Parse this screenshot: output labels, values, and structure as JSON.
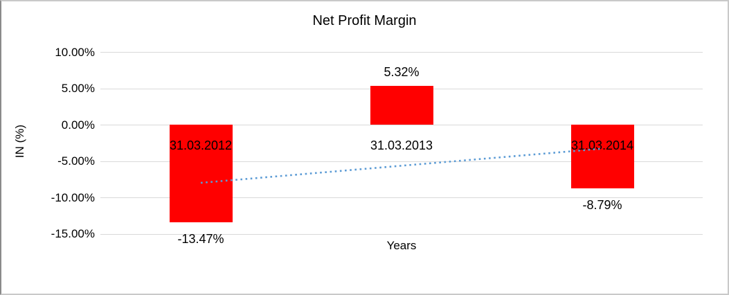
{
  "chart_data": {
    "type": "bar",
    "title": "Net Profit Margin",
    "xlabel": "Years",
    "ylabel": "IN (%)",
    "categories": [
      "31.03.2012",
      "31.03.2013",
      "31.03.2014"
    ],
    "values": [
      -13.47,
      5.32,
      -8.79
    ],
    "value_labels": [
      "-13.47%",
      "5.32%",
      "-8.79%"
    ],
    "bar_color": "#ff0000",
    "ylim": [
      -15,
      10
    ],
    "yticks": [
      10,
      5,
      0,
      -5,
      -10,
      -15
    ],
    "ytick_labels": [
      "10.00%",
      "5.00%",
      "0.00%",
      "-5.00%",
      "-10.00%",
      "-15.00%"
    ],
    "grid": true,
    "gridline_color": "#d9d9d9",
    "background_color": "#ffffff",
    "legend": "none",
    "trendline": {
      "type": "linear",
      "style": "dotted",
      "color": "#5b9bd5",
      "y_start_pct": -8.0,
      "y_end_pct": -3.3
    }
  }
}
